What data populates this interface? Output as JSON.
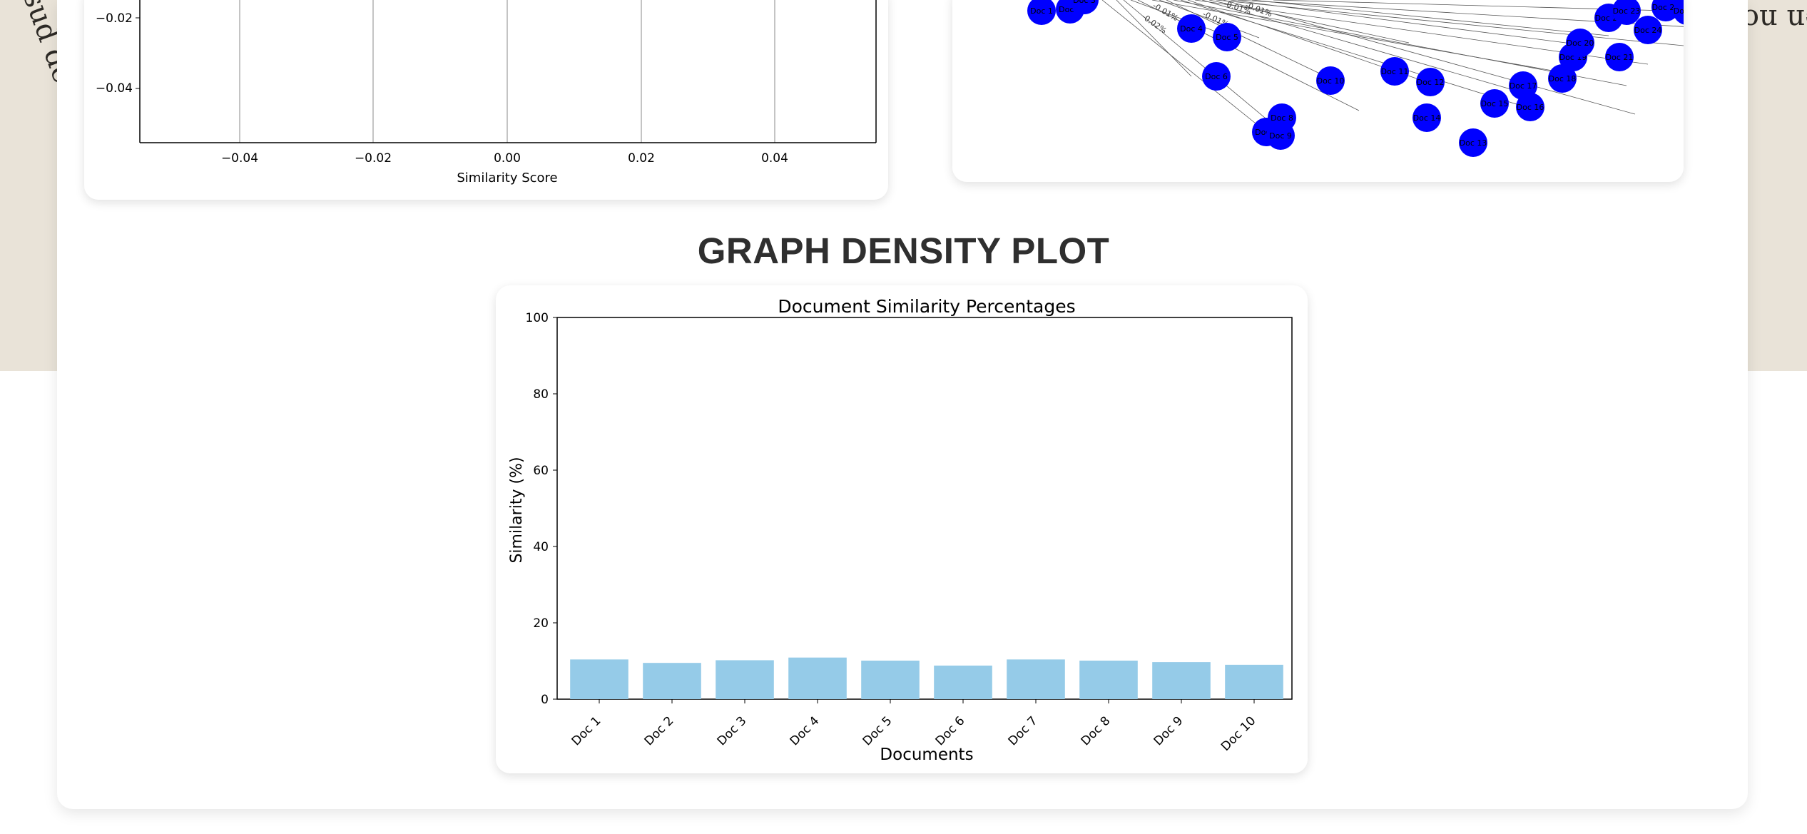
{
  "section_title": "GRAPH DENSITY PLOT",
  "top_chart": {
    "xlabel": "Similarity Score",
    "x_ticks": [
      "−0.04",
      "−0.02",
      "0.00",
      "0.02",
      "0.04"
    ],
    "y_ticks": [
      "−0.02",
      "−0.04"
    ]
  },
  "network_graph": {
    "node_color": "#0000ff",
    "nodes": [
      "Doc 1",
      "Doc 2",
      "Doc 3",
      "Doc 4",
      "Doc 5",
      "Doc 6",
      "Doc 7",
      "Doc 8",
      "Doc 9",
      "Doc 10",
      "Doc 11",
      "Doc 12",
      "Doc 13",
      "Doc 14",
      "Doc 15",
      "Doc 16",
      "Doc 17",
      "Doc 18",
      "Doc 19",
      "Doc 20",
      "Doc 21",
      "Doc 22",
      "Doc 23",
      "Doc 24",
      "Doc 25",
      "Doc 26",
      "Doc 27"
    ],
    "edge_labels": [
      "-0.01%",
      "-0.01%",
      "-0.01%",
      "-0.02%",
      "-0.01%"
    ]
  },
  "chart_data": {
    "type": "bar",
    "title": "Document Similarity Percentages",
    "xlabel": "Documents",
    "ylabel": "Similarity (%)",
    "categories": [
      "Doc 1",
      "Doc 2",
      "Doc 3",
      "Doc 4",
      "Doc 5",
      "Doc 6",
      "Doc 7",
      "Doc 8",
      "Doc 9",
      "Doc 10"
    ],
    "values": [
      10.4,
      9.5,
      10.2,
      10.9,
      10.1,
      8.8,
      10.4,
      10.1,
      9.7,
      9.0
    ],
    "ylim": [
      0,
      100
    ],
    "y_ticks": [
      "0",
      "20",
      "40",
      "60",
      "80",
      "100"
    ],
    "bar_color": "#95cbe8",
    "grid": false
  }
}
